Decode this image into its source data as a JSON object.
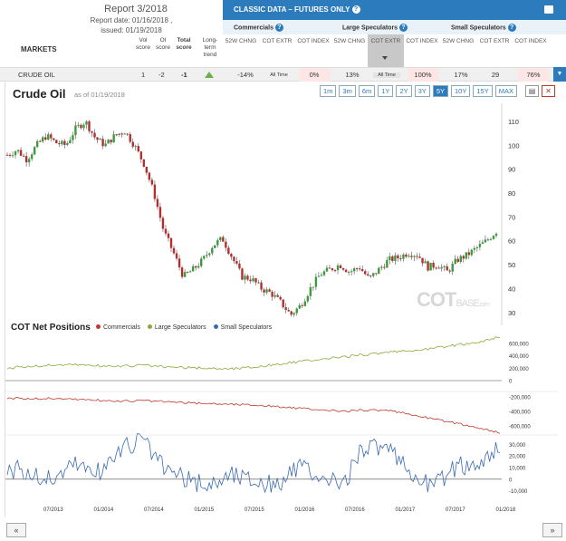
{
  "report": {
    "title": "Report 3/2018",
    "date_line": "Report date: 01/16/2018 ,",
    "issued_line": "issued: 01/19/2018"
  },
  "columns": {
    "markets": "MARKETS",
    "vol": "Vol score",
    "oi": "OI score",
    "total": "Total score",
    "trend": "Long-term trend"
  },
  "classic": {
    "title": "CLASSIC DATA – FUTURES ONLY"
  },
  "groups": {
    "commercials": "Commercials",
    "large": "Large Speculators",
    "small": "Small Speculators"
  },
  "subheaders": {
    "chng": "52W CHNG",
    "extr": "COT EXTR",
    "index": "COT INDEX"
  },
  "row": {
    "market": "CRUDE OIL",
    "vol": "1",
    "oi": "-2",
    "total": "-1",
    "comm_chng": "-14%",
    "comm_extr": "All Time",
    "comm_index": "0%",
    "large_chng": "13%",
    "large_extr": "All Time",
    "large_index": "100%",
    "small_chng": "17%",
    "small_extr": "29",
    "small_index": "76%"
  },
  "price_chart": {
    "title": "Crude Oil",
    "asof": "as of 01/19/2018"
  },
  "ranges": [
    "1m",
    "3m",
    "6m",
    "1Y",
    "2Y",
    "3Y",
    "5Y",
    "10Y",
    "15Y",
    "MAX"
  ],
  "active_range": "5Y",
  "watermark": {
    "cot": "COT",
    "base": "BASE",
    "domain": ".com"
  },
  "cot_chart": {
    "title": "COT Net Positions"
  },
  "nav": {
    "prev": "«",
    "next": "»"
  },
  "colors": {
    "accent": "#2b7bbd",
    "commercials": "#c0392b",
    "large": "#8aaa3a",
    "small": "#3a6ab0",
    "up": "#3c9b3c",
    "down": "#b03030"
  },
  "chart_data": [
    {
      "type": "line",
      "title": "Crude Oil",
      "x_ticks": [
        "07/2013",
        "01/2014",
        "07/2014",
        "01/2015",
        "07/2015",
        "01/2016",
        "07/2016",
        "01/2017",
        "07/2017",
        "01/2018"
      ],
      "y_ticks": [
        30,
        40,
        50,
        60,
        70,
        80,
        90,
        100,
        110
      ],
      "ylim": [
        25,
        113
      ],
      "series": [
        {
          "values": [
            96,
            98,
            94,
            100,
            104,
            101,
            100,
            107,
            110,
            103,
            100,
            104,
            106,
            100,
            92,
            80,
            64,
            55,
            45,
            48,
            52,
            58,
            61,
            53,
            45,
            44,
            40,
            38,
            34,
            29,
            33,
            40,
            46,
            48,
            50,
            47,
            49,
            44,
            48,
            52,
            53,
            55,
            54,
            49,
            50,
            47,
            52,
            54,
            57,
            60,
            64
          ]
        }
      ]
    },
    {
      "type": "line",
      "title": "COT Net Positions",
      "series": [
        {
          "name": "Commercials",
          "values": [
            -215000,
            -225000,
            -220000,
            -230000,
            -245000,
            -260000,
            -250000,
            -265000,
            -280000,
            -290000,
            -300000,
            -310000,
            -330000,
            -360000,
            -380000,
            -400000,
            -380000,
            -390000,
            -440000,
            -500000,
            -560000,
            -620000,
            -700000
          ]
        },
        {
          "name": "Large Speculators",
          "values": [
            200000,
            230000,
            250000,
            260000,
            240000,
            230000,
            250000,
            220000,
            210000,
            200000,
            190000,
            220000,
            260000,
            300000,
            340000,
            380000,
            420000,
            450000,
            480000,
            520000,
            570000,
            620000,
            700000
          ]
        },
        {
          "name": "Small Speculators",
          "values": [
            10000,
            5000,
            0,
            15000,
            5000,
            25000,
            35000,
            10000,
            0,
            -5000,
            5000,
            0,
            -5000,
            10000,
            0,
            -5000,
            30000,
            25000,
            5000,
            -5000,
            10000,
            15000,
            25000
          ]
        }
      ]
    }
  ]
}
